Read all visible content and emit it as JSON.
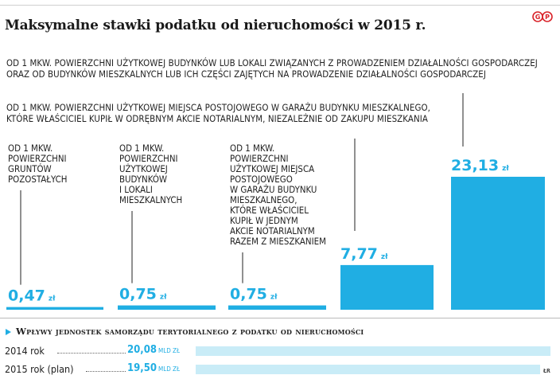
{
  "title": "Maksymalne stawki podatku od nieruchomości w 2015 r.",
  "logo_text": "GP",
  "notes": [
    "OD 1 MKW. POWIERZCHNI UŻYTKOWEJ BUDYNKÓW LUB LOKALI ZWIĄZANYCH Z PROWADZENIEM DZIAŁALNOŚCI GOSPODARCZEJ ORAZ OD BUDYNKÓW MIESZKALNYCH LUB ICH CZĘŚCI ZAJĘTYCH NA PROWADZENIE DZIAŁALNOŚCI GOSPODARCZEJ",
    "OD 1 MKW. POWIERZCHNI UŻYTKOWEJ MIEJSCA POSTOJOWEGO W GARAŻU BUDYNKU MIESZKALNEGO, KTÓRE WŁAŚCICIEL KUPIŁ W ODRĘBNYM AKCIE NOTARIALNYM, NIEZALEŻNIE OD ZAKUPU MIESZKANIA"
  ],
  "chart_data": [
    {
      "type": "bar",
      "title": "Maksymalne stawki podatku od nieruchomości w 2015 r.",
      "unit": "zł",
      "colors": {
        "bar": "#20aee3",
        "value": "#20aee3"
      },
      "categories": [
        "OD 1 MKW. POWIERZCHNI GRUNTÓW POZOSTAŁYCH",
        "OD 1 MKW. POWIERZCHNI UŻYTKOWEJ BUDYNKÓW I LOKALI MIESZKALNYCH",
        "OD 1 MKW. POWIERZCHNI UŻYTKOWEJ MIEJSCA POSTOJOWEGO W GARAŻU BUDYNKU MIESZKALNEGO, KTÓRE WŁAŚCICIEL KUPIŁ W JEDNYM AKCIE NOTARIALNYM RAZEM Z MIESZKANIEM",
        "OD 1 MKW. POWIERZCHNI UŻYTKOWEJ MIEJSCA POSTOJOWEGO W GARAŻU BUDYNKU MIESZKALNEGO, KTÓRE WŁAŚCICIEL KUPIŁ W ODRĘBNYM AKCIE NOTARIALNYM, NIEZALEŻNIE OD ZAKUPU MIESZKANIA",
        "OD 1 MKW. POWIERZCHNI UŻYTKOWEJ BUDYNKÓW LUB LOKALI ZWIĄZANYCH Z PROWADZENIEM DZIAŁALNOŚCI GOSPODARCZEJ ORAZ OD BUDYNKÓW MIESZKALNYCH LUB ICH CZĘŚCI ZAJĘTYCH NA PROWADZENIE DZIAŁALNOŚCI GOSPODARCZEJ"
      ],
      "category_lines": [
        [
          "OD 1 MKW.",
          "POWIERZCHNI",
          "GRUNTÓW",
          "POZOSTAŁYCH"
        ],
        [
          "OD 1 MKW.",
          "POWIERZCHNI",
          "UŻYTKOWEJ",
          "BUDYNKÓW",
          "I LOKALI",
          "MIESZKALNYCH"
        ],
        [
          "OD 1 MKW.",
          "POWIERZCHNI",
          "UŻYTKOWEJ MIEJSCA",
          "POSTOJOWEGO",
          "W GARAŻU BUDYNKU",
          "MIESZKALNEGO,",
          "KTÓRE WŁAŚCICIEL",
          "KUPIŁ W JEDNYM",
          "AKCIE NOTARIALNYM",
          "RAZEM Z MIESZKANIEM"
        ],
        [],
        []
      ],
      "values": [
        0.47,
        0.75,
        0.75,
        7.77,
        23.13
      ],
      "value_labels": [
        "0,47",
        "0,75",
        "0,75",
        "7,77",
        "23,13"
      ],
      "ylim": [
        0,
        23.13
      ]
    },
    {
      "type": "bar",
      "title": "Wpływy jednostek samorządu terytorialnego z podatku od nieruchomości",
      "unit": "MLD ZŁ",
      "colors": {
        "bar": "#c9ecf7",
        "value": "#20aee3"
      },
      "categories": [
        "2014 rok",
        "2015 rok (plan)"
      ],
      "values": [
        20.08,
        19.5
      ],
      "value_labels": [
        "20,08",
        "19,50"
      ],
      "xlim": [
        0,
        20.08
      ]
    }
  ],
  "credit": "ŁR"
}
